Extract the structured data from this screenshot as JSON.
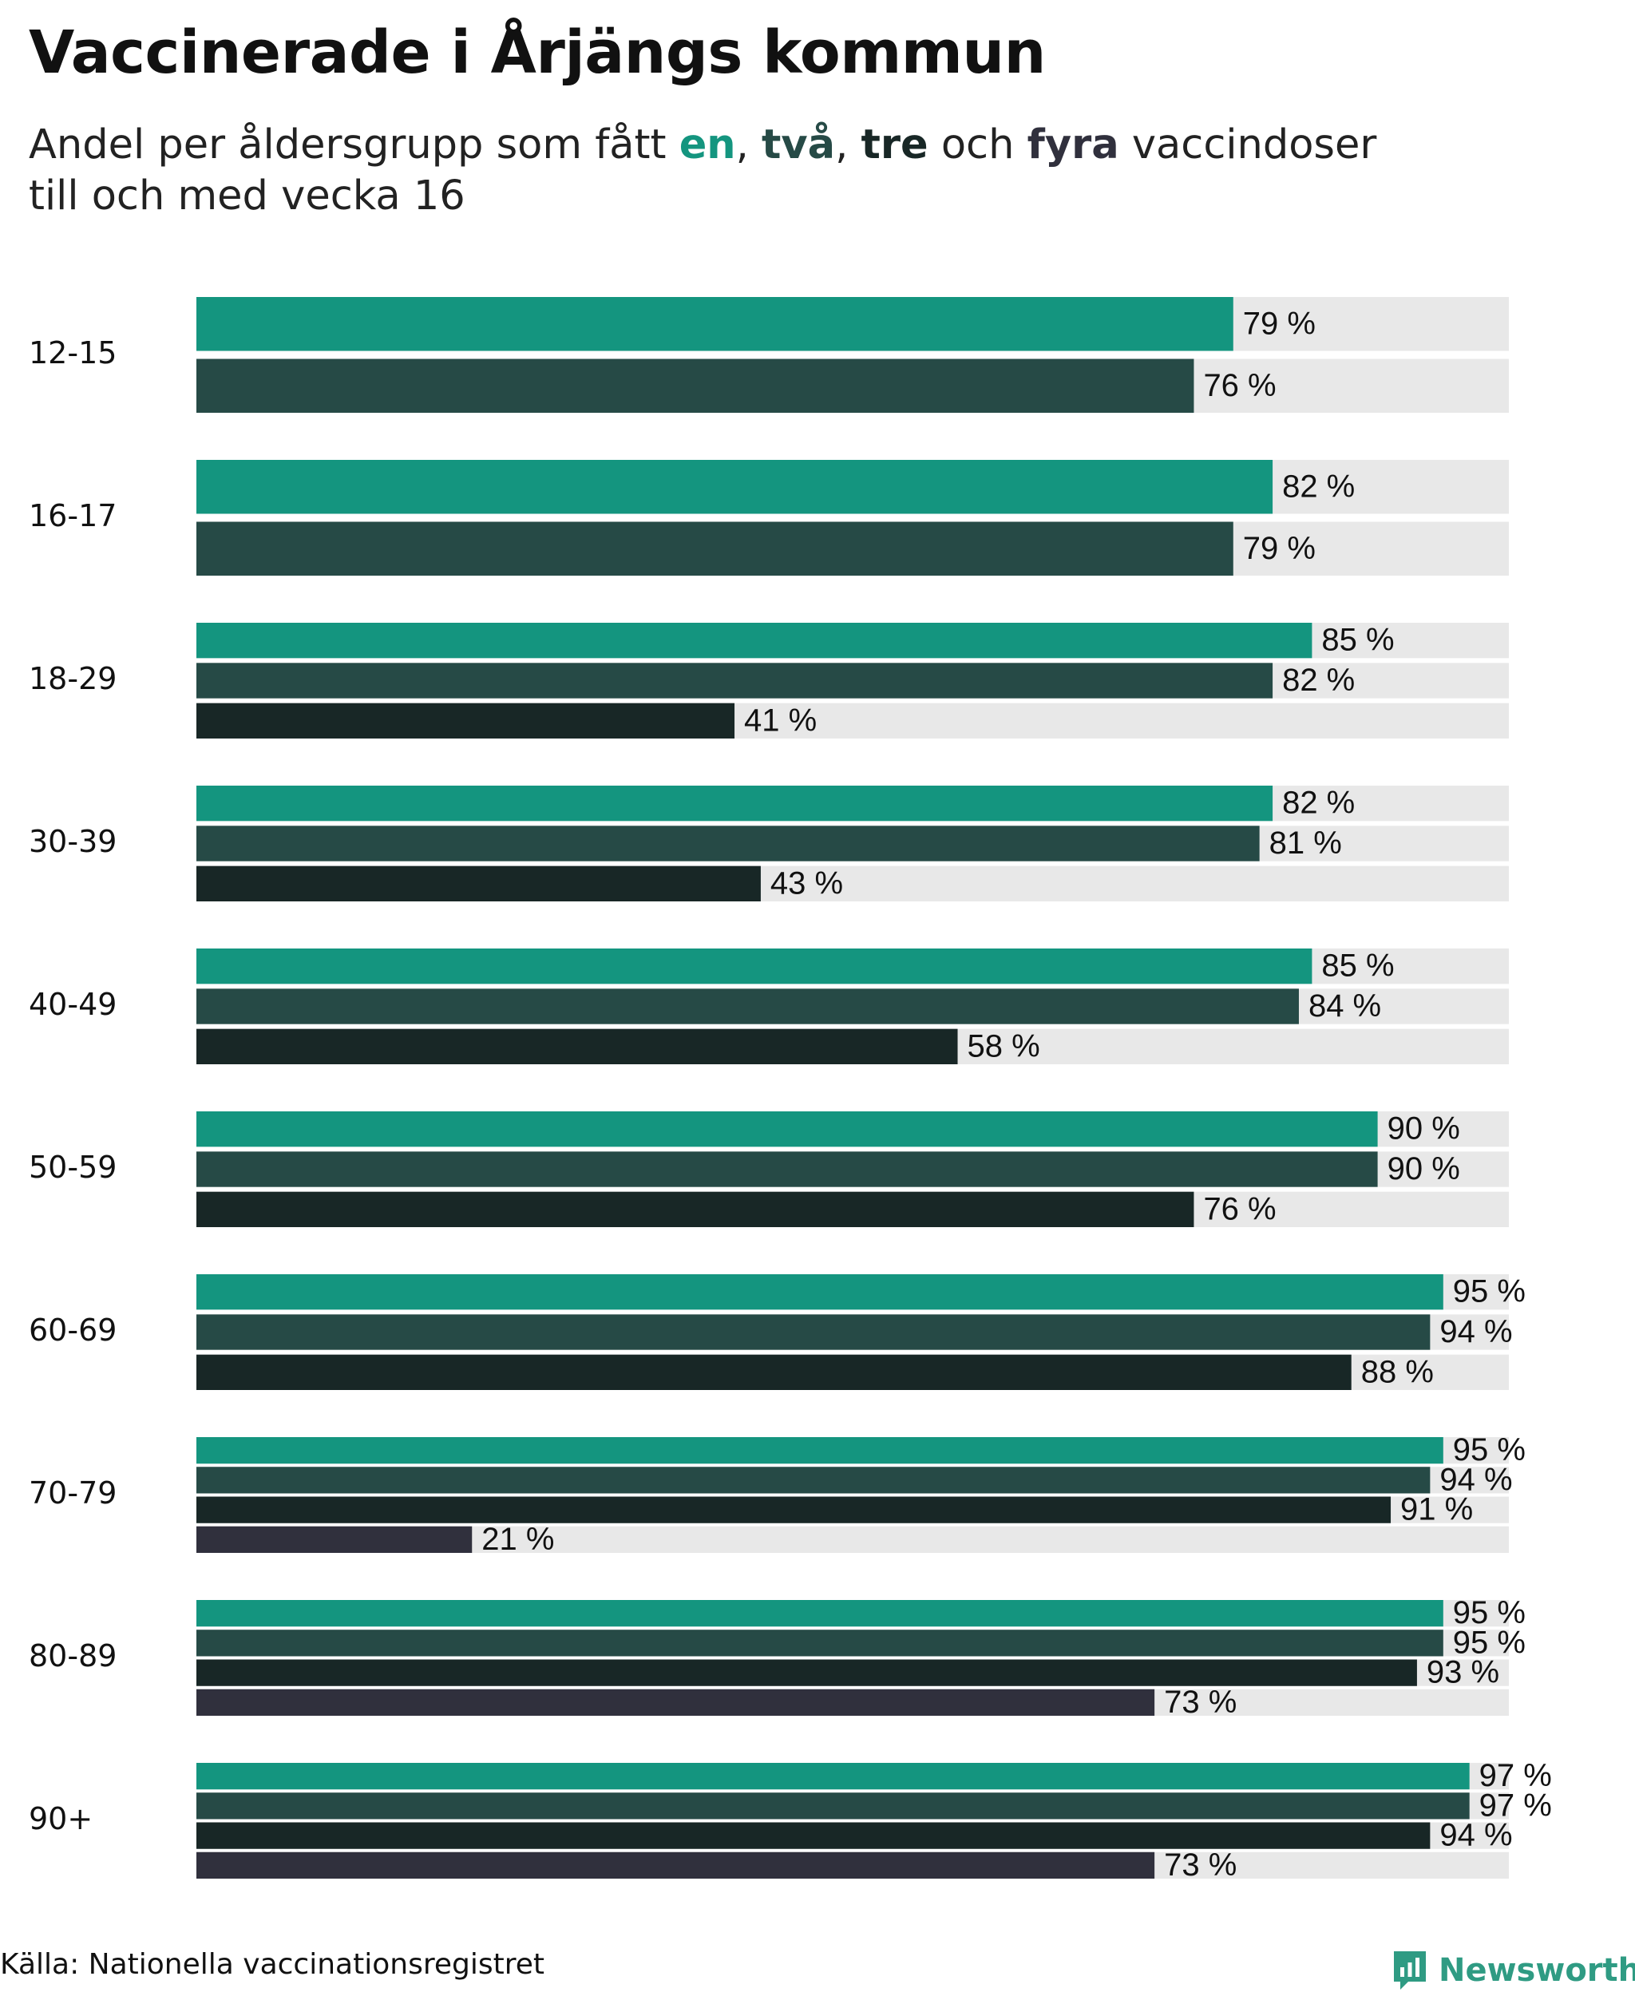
{
  "title": "Vaccinerade i Årjängs kommun",
  "subtitle": {
    "prefix": "Andel per åldersgrupp som fått ",
    "dose1": "en",
    "sep1": ", ",
    "dose2": "två",
    "sep2": ", ",
    "dose3": "tre",
    "sep3": " och ",
    "dose4": "fyra",
    "suffix": " vaccindoser",
    "line2": "till och med vecka 16"
  },
  "colors": {
    "dose1": "#14957f",
    "dose2": "#264a46",
    "dose3": "#182726",
    "dose4": "#30303d",
    "track": "#e8e8e8",
    "brand": "#2f9b83"
  },
  "chart_data": {
    "type": "bar",
    "orientation": "horizontal",
    "xlim": [
      0,
      100
    ],
    "unit": "%",
    "categories": [
      "12-15",
      "16-17",
      "18-29",
      "30-39",
      "40-49",
      "50-59",
      "60-69",
      "70-79",
      "80-89",
      "90+"
    ],
    "series": [
      {
        "name": "en",
        "values": [
          79,
          82,
          85,
          82,
          85,
          90,
          95,
          95,
          95,
          97
        ]
      },
      {
        "name": "två",
        "values": [
          76,
          79,
          82,
          81,
          84,
          90,
          94,
          94,
          95,
          97
        ]
      },
      {
        "name": "tre",
        "values": [
          null,
          null,
          41,
          43,
          58,
          76,
          88,
          91,
          93,
          94
        ]
      },
      {
        "name": "fyra",
        "values": [
          null,
          null,
          null,
          null,
          null,
          null,
          null,
          21,
          73,
          73
        ]
      }
    ],
    "value_labels": [
      [
        "79 %",
        "76 %"
      ],
      [
        "82 %",
        "79 %"
      ],
      [
        "85 %",
        "82 %",
        "41 %"
      ],
      [
        "82 %",
        "81 %",
        "43 %"
      ],
      [
        "85 %",
        "84 %",
        "58 %"
      ],
      [
        "90 %",
        "90 %",
        "76 %"
      ],
      [
        "95 %",
        "94 %",
        "88 %"
      ],
      [
        "95 %",
        "94 %",
        "91 %",
        "21 %"
      ],
      [
        "95 %",
        "95 %",
        "93 %",
        "73 %"
      ],
      [
        "97 %",
        "97 %",
        "94 %",
        "73 %"
      ]
    ]
  },
  "footer": {
    "source": "Källa: Nationella vaccinationsregistret",
    "brand": "Newsworthy",
    "logo_icon": "newsworthy-logo-icon"
  }
}
